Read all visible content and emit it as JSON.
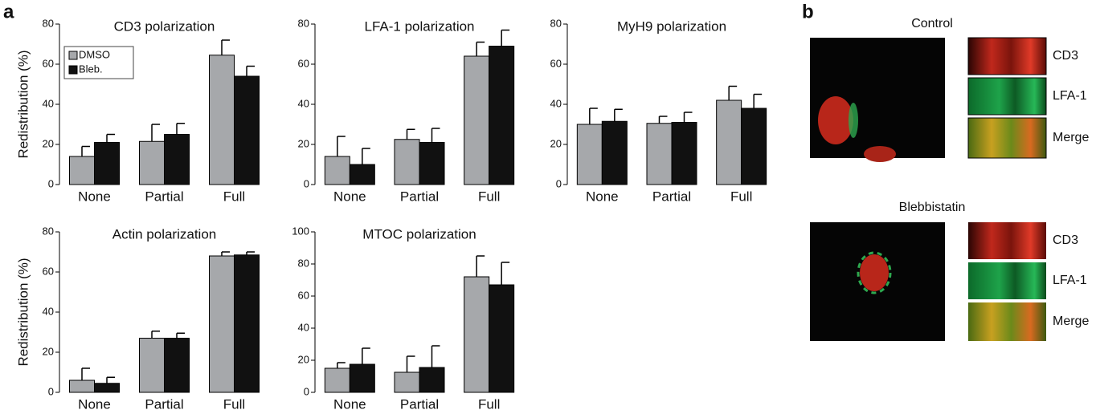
{
  "panel_labels": [
    "a",
    "b"
  ],
  "chart_data": [
    {
      "type": "bar",
      "title": "CD3 polarization",
      "ylabel": "Redistribution (%)",
      "categories": [
        "None",
        "Partial",
        "Full"
      ],
      "series": [
        {
          "name": "DMSO",
          "color": "#a6a8ab",
          "values": [
            14,
            21.5,
            64.5
          ],
          "errors": [
            5,
            8.5,
            7.5
          ]
        },
        {
          "name": "Bleb.",
          "color": "#111111",
          "values": [
            21,
            25,
            54
          ],
          "errors": [
            4,
            5.5,
            5
          ]
        }
      ],
      "ylim": [
        0,
        80
      ],
      "yticks": [
        0,
        20,
        40,
        60,
        80
      ],
      "legend": "upper left"
    },
    {
      "type": "bar",
      "title": "LFA-1 polarization",
      "categories": [
        "None",
        "Partial",
        "Full"
      ],
      "series": [
        {
          "color": "#a6a8ab",
          "values": [
            14,
            22.5,
            64
          ],
          "errors": [
            10,
            5,
            7
          ]
        },
        {
          "color": "#111111",
          "values": [
            10,
            21,
            69
          ],
          "errors": [
            8,
            7,
            8
          ]
        }
      ],
      "ylim": [
        0,
        80
      ],
      "yticks": [
        0,
        20,
        40,
        60,
        80
      ]
    },
    {
      "type": "bar",
      "title": "MyH9 polarization",
      "categories": [
        "None",
        "Partial",
        "Full"
      ],
      "series": [
        {
          "color": "#a6a8ab",
          "values": [
            30,
            30.5,
            42
          ],
          "errors": [
            8,
            3.5,
            7
          ]
        },
        {
          "color": "#111111",
          "values": [
            31.5,
            31,
            38
          ],
          "errors": [
            6,
            5,
            7
          ]
        }
      ],
      "ylim": [
        0,
        80
      ],
      "yticks": [
        0,
        20,
        40,
        60,
        80
      ]
    },
    {
      "type": "bar",
      "title": "Actin polarization",
      "ylabel": "Redistribution (%)",
      "categories": [
        "None",
        "Partial",
        "Full"
      ],
      "series": [
        {
          "color": "#a6a8ab",
          "values": [
            6,
            27,
            68
          ],
          "errors": [
            6,
            3.5,
            2
          ]
        },
        {
          "color": "#111111",
          "values": [
            4.5,
            27,
            68.5
          ],
          "errors": [
            3,
            2.5,
            1.5
          ]
        }
      ],
      "ylim": [
        0,
        80
      ],
      "yticks": [
        0,
        20,
        40,
        60,
        80
      ]
    },
    {
      "type": "bar",
      "title": "MTOC polarization",
      "categories": [
        "None",
        "Partial",
        "Full"
      ],
      "series": [
        {
          "color": "#a6a8ab",
          "values": [
            15,
            12.5,
            72
          ],
          "errors": [
            3.5,
            10,
            13
          ]
        },
        {
          "color": "#111111",
          "values": [
            17.5,
            15.5,
            67
          ],
          "errors": [
            10,
            13.5,
            14
          ]
        }
      ],
      "ylim": [
        0,
        100
      ],
      "yticks": [
        0,
        20,
        40,
        60,
        80,
        100
      ]
    }
  ],
  "panel_b": {
    "groups": [
      {
        "title": "Control",
        "channels": [
          "CD3",
          "LFA-1",
          "Merge"
        ]
      },
      {
        "title": "Blebbistatin",
        "channels": [
          "CD3",
          "LFA-1",
          "Merge"
        ]
      }
    ]
  }
}
